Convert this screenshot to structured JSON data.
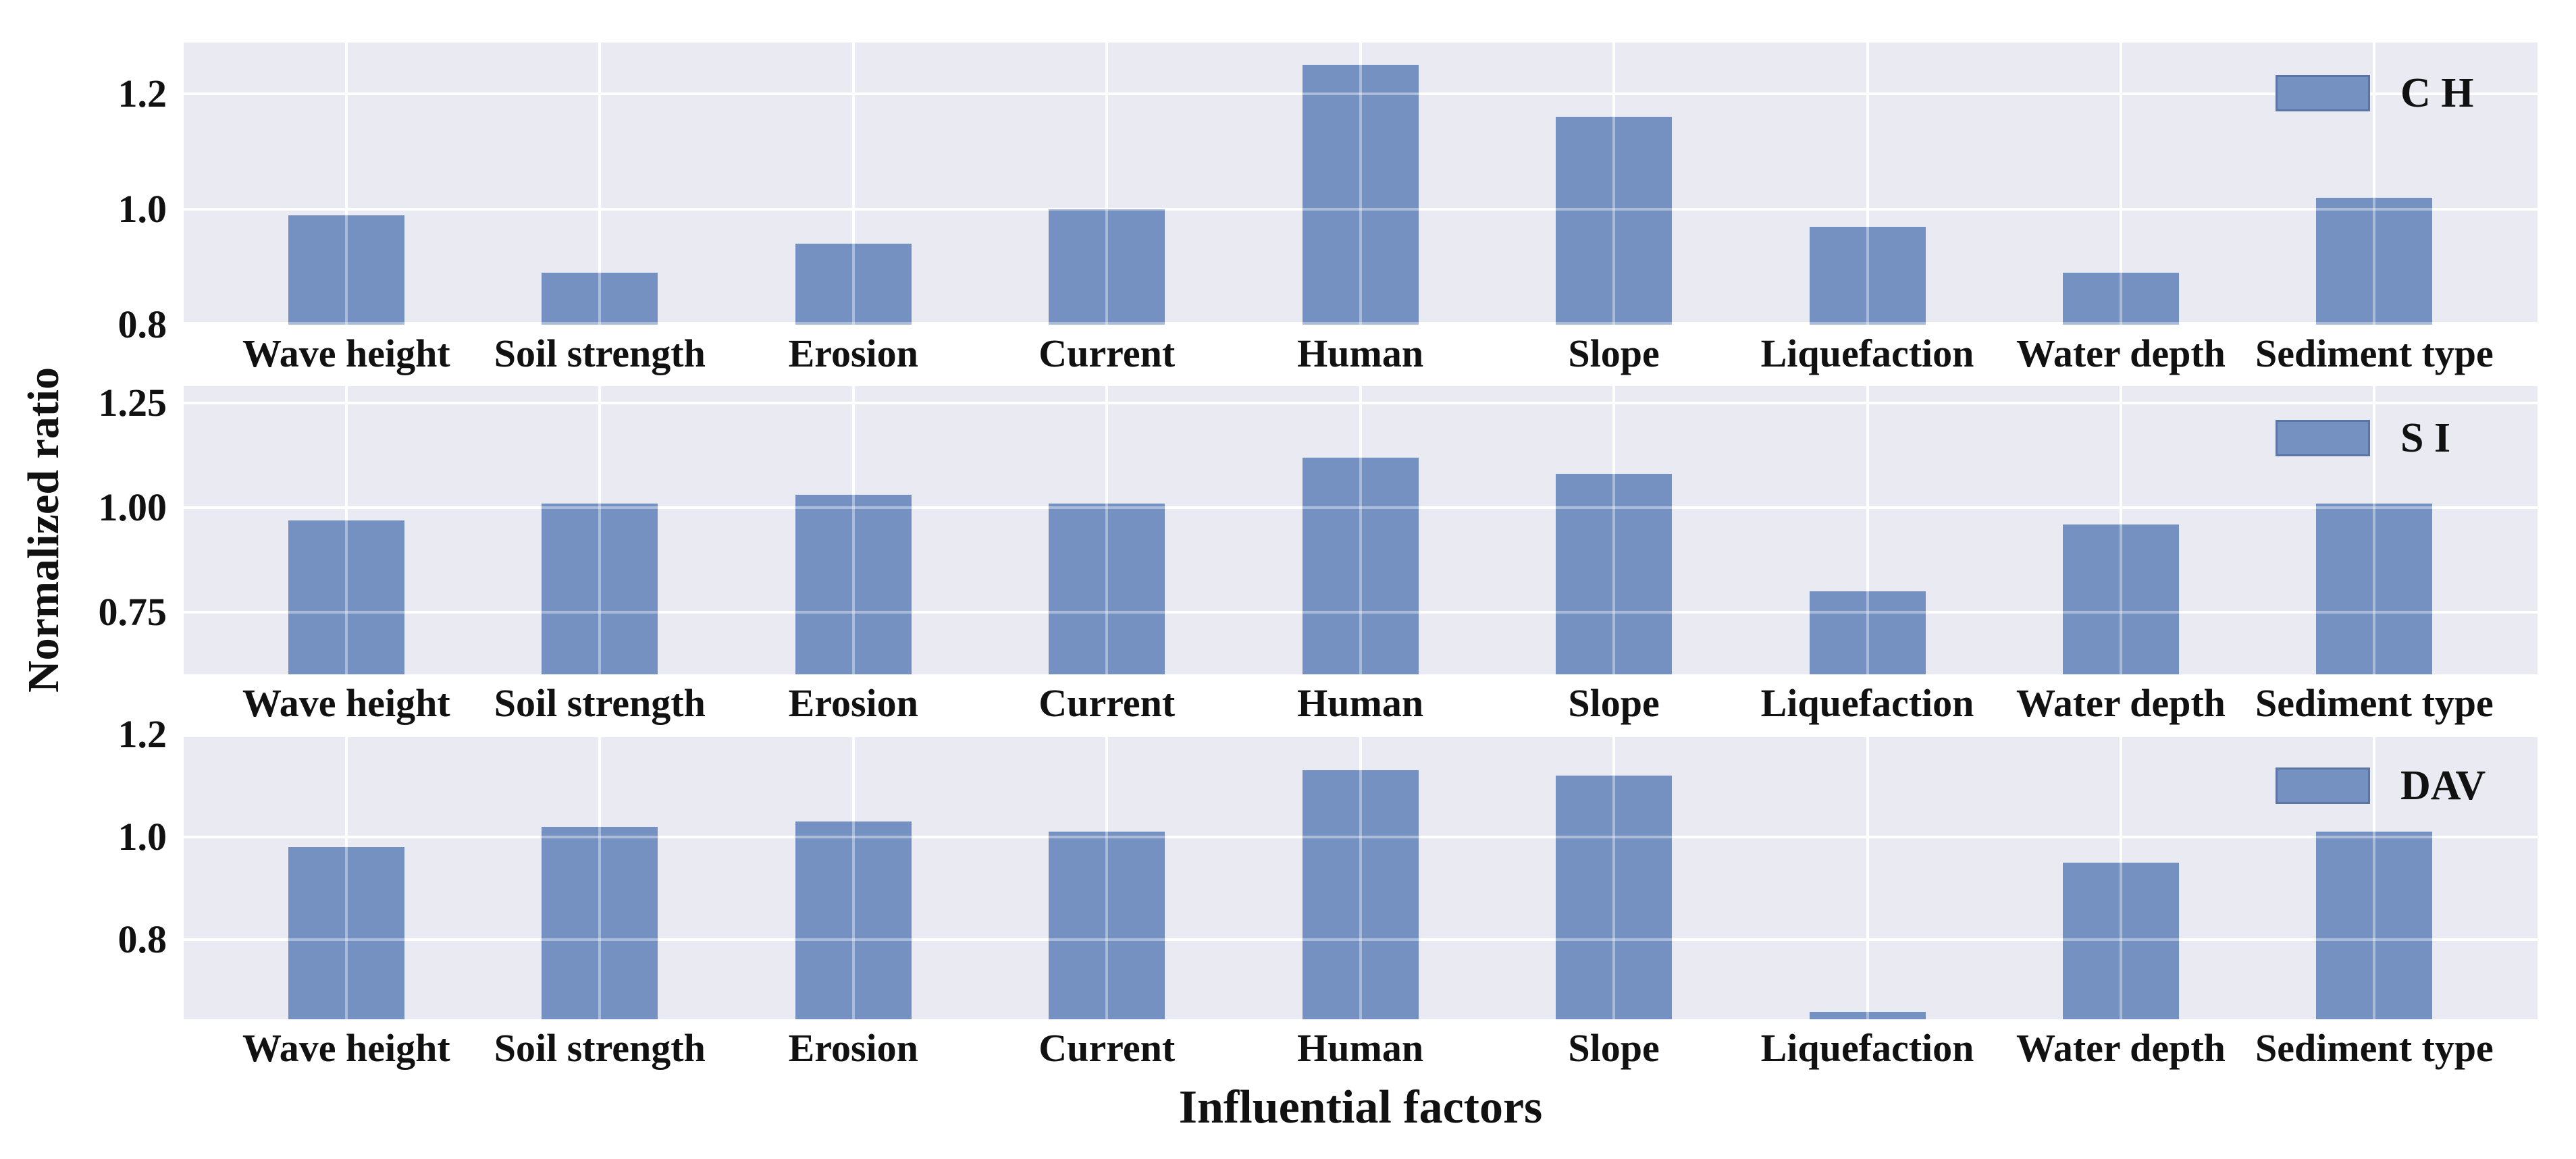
{
  "figure": {
    "ylabel": "Normalized ratio",
    "xlabel": "Influential factors",
    "colors": {
      "figure_background": "#ffffff",
      "plot_background": "#eaeaf2",
      "grid": "#ffffff",
      "bar_fill": "#7591c1",
      "bar_edge": "#5a76ad",
      "text": "#111111"
    }
  },
  "chart_data": {
    "type": "bar",
    "title": "",
    "xlabel": "Influential factors",
    "ylabel": "Normalized ratio",
    "grid": true,
    "legend_position": "upper right",
    "categories": [
      "Wave height",
      "Soil strength",
      "Erosion",
      "Current",
      "Human",
      "Slope",
      "Liquefaction",
      "Water depth",
      "Sediment type"
    ],
    "subplots": [
      {
        "legend": "C H",
        "ylim": [
          0.8,
          1.289
        ],
        "yticks": [
          {
            "value": 1.2,
            "label": "1.2"
          },
          {
            "value": 1.0,
            "label": "1.0"
          },
          {
            "value": 0.8,
            "label": "0.8"
          }
        ],
        "values": [
          0.99,
          0.89,
          0.94,
          1.0,
          1.25,
          1.16,
          0.97,
          0.89,
          1.02
        ]
      },
      {
        "legend": "S I",
        "ylim": [
          0.602,
          1.29
        ],
        "yticks": [
          {
            "value": 1.25,
            "label": "1.25"
          },
          {
            "value": 1.0,
            "label": "1.00"
          },
          {
            "value": 0.75,
            "label": "0.75"
          }
        ],
        "values": [
          0.97,
          1.01,
          1.03,
          1.01,
          1.12,
          1.08,
          0.8,
          0.96,
          1.01
        ]
      },
      {
        "legend": "DAV",
        "ylim": [
          0.645,
          1.2
        ],
        "yticks": [
          {
            "value": 1.2,
            "label": "1.2"
          },
          {
            "value": 1.0,
            "label": "1.0"
          },
          {
            "value": 0.8,
            "label": "0.8"
          }
        ],
        "values": [
          0.98,
          1.02,
          1.03,
          1.01,
          1.13,
          1.12,
          0.66,
          0.95,
          1.01
        ]
      }
    ]
  }
}
